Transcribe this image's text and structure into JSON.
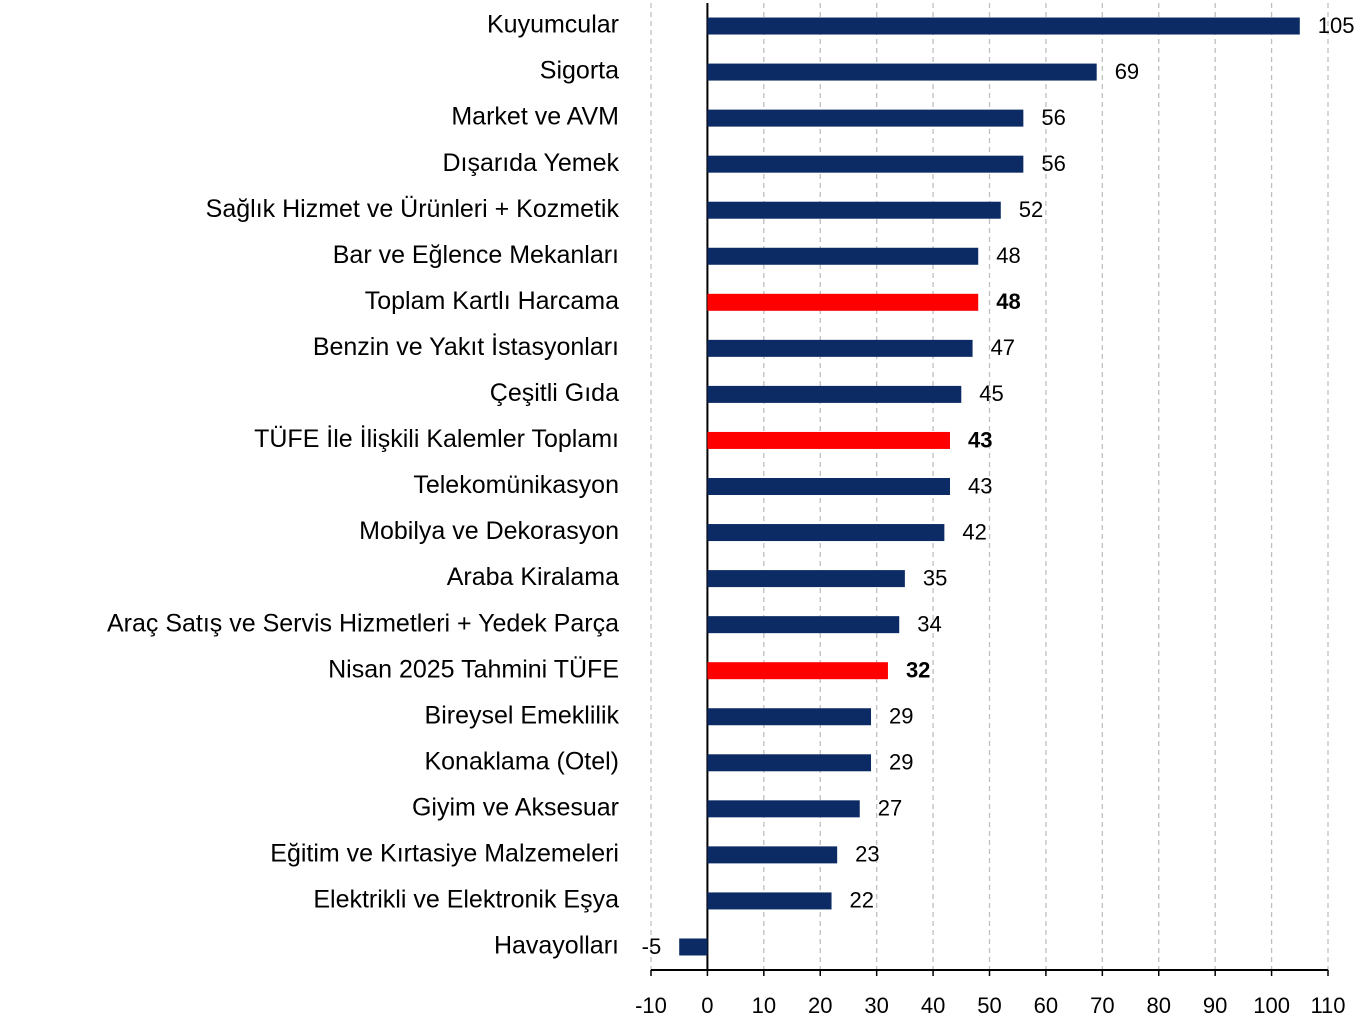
{
  "chart_data": {
    "type": "bar",
    "orientation": "horizontal",
    "categories": [
      "Kuyumcular",
      "Sigorta",
      "Market ve AVM",
      "Dışarıda Yemek",
      "Sağlık Hizmet ve Ürünleri + Kozmetik",
      "Bar ve Eğlence Mekanları",
      "Toplam Kartlı Harcama",
      "Benzin ve Yakıt İstasyonları",
      "Çeşitli Gıda",
      "TÜFE İle İlişkili Kalemler Toplamı",
      "Telekomünikasyon",
      "Mobilya ve Dekorasyon",
      "Araba Kiralama",
      "Araç Satış ve Servis Hizmetleri + Yedek Parça",
      "Nisan 2025 Tahmini TÜFE",
      "Bireysel Emeklilik",
      "Konaklama (Otel)",
      "Giyim ve Aksesuar",
      "Eğitim ve Kırtasiye Malzemeleri",
      "Elektrikli ve Elektronik Eşya",
      "Havayolları"
    ],
    "values": [
      105,
      69,
      56,
      56,
      52,
      48,
      48,
      47,
      45,
      43,
      43,
      42,
      35,
      34,
      32,
      29,
      29,
      27,
      23,
      22,
      -5
    ],
    "color": "#0c2a63",
    "colors": [
      "#0c2a63",
      "#0c2a63",
      "#0c2a63",
      "#0c2a63",
      "#0c2a63",
      "#0c2a63",
      "#ff0000",
      "#0c2a63",
      "#0c2a63",
      "#ff0000",
      "#0c2a63",
      "#0c2a63",
      "#0c2a63",
      "#0c2a63",
      "#ff0000",
      "#0c2a63",
      "#0c2a63",
      "#0c2a63",
      "#0c2a63",
      "#0c2a63",
      "#0c2a63"
    ],
    "xlim": [
      -10,
      110
    ],
    "xticks": [
      -10,
      0,
      10,
      20,
      30,
      40,
      50,
      60,
      70,
      80,
      90,
      100,
      110
    ],
    "grid": true
  }
}
